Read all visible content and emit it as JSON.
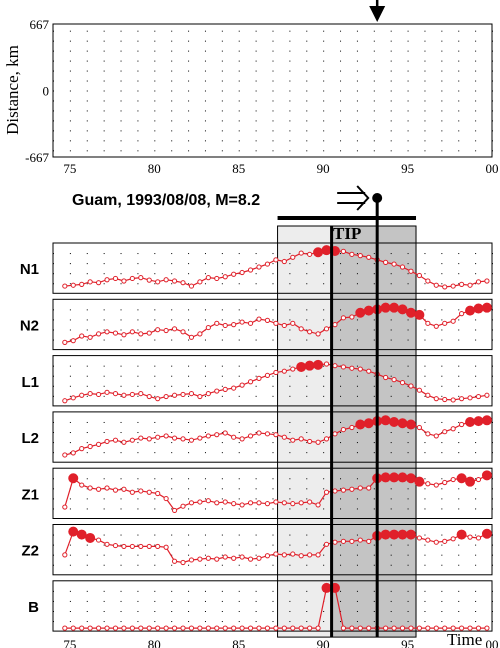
{
  "chart_data": [
    {
      "type": "scatter",
      "ylabel": "Distance, km",
      "xlim": [
        74,
        100
      ],
      "ylim": [
        -667,
        667
      ],
      "x_ticks": [
        "75",
        "80",
        "85",
        "90",
        "95",
        "00"
      ],
      "y_ticks": [
        "667",
        "0",
        "-667"
      ],
      "marker_color": "#e0202a",
      "event_arrow_x": 93.2,
      "note": "dense background seismicity pattern, open circles with occasional filled larger events"
    },
    {
      "type": "line",
      "event_label": "Guam, 1993/08/08, M=8.2",
      "event_time": 93.2,
      "tip_label": "TIP",
      "tip_window": [
        90.5,
        95.5
      ],
      "light_window": [
        87.3,
        95.5
      ],
      "vertical_marks": [
        90.5,
        93.2
      ],
      "xlim": [
        74,
        100
      ],
      "x_ticks": [
        "75",
        "80",
        "85",
        "90",
        "95",
        "00"
      ],
      "xlabel": "Time",
      "line_color": "#e0202a",
      "series": [
        {
          "name": "N1",
          "x": [
            74.7,
            75.2,
            75.7,
            76.2,
            76.7,
            77.2,
            77.7,
            78.2,
            78.7,
            79.2,
            79.7,
            80.2,
            80.7,
            81.2,
            81.7,
            82.2,
            82.7,
            83.2,
            83.7,
            84.2,
            84.7,
            85.2,
            85.7,
            86.2,
            86.7,
            87.2,
            87.7,
            88.2,
            88.7,
            89.2,
            89.7,
            90.2,
            90.7,
            91.2,
            91.7,
            92.2,
            92.7,
            93.2,
            93.7,
            94.2,
            94.7,
            95.2,
            95.7,
            96.2,
            96.7,
            97.2,
            97.7,
            98.2,
            98.7,
            99.2,
            99.7
          ],
          "values": [
            0.1,
            0.12,
            0.14,
            0.2,
            0.18,
            0.25,
            0.28,
            0.22,
            0.28,
            0.3,
            0.24,
            0.2,
            0.25,
            0.22,
            0.18,
            0.1,
            0.2,
            0.3,
            0.28,
            0.32,
            0.38,
            0.42,
            0.48,
            0.55,
            0.62,
            0.72,
            0.68,
            0.78,
            0.88,
            0.85,
            0.9,
            0.95,
            0.93,
            0.92,
            0.85,
            0.82,
            0.78,
            0.72,
            0.66,
            0.62,
            0.55,
            0.45,
            0.35,
            0.22,
            0.12,
            0.08,
            0.1,
            0.14,
            0.12,
            0.2,
            0.22
          ],
          "filled": [
            30,
            31,
            32
          ]
        },
        {
          "name": "N2",
          "x": [
            74.7,
            75.2,
            75.7,
            76.2,
            76.7,
            77.2,
            77.7,
            78.2,
            78.7,
            79.2,
            79.7,
            80.2,
            80.7,
            81.2,
            81.7,
            82.2,
            82.7,
            83.2,
            83.7,
            84.2,
            84.7,
            85.2,
            85.7,
            86.2,
            86.7,
            87.2,
            87.7,
            88.2,
            88.7,
            89.2,
            89.7,
            90.2,
            90.7,
            91.2,
            91.7,
            92.2,
            92.7,
            93.2,
            93.7,
            94.2,
            94.7,
            95.2,
            95.7,
            96.2,
            96.7,
            97.2,
            97.7,
            98.2,
            98.7,
            99.2,
            99.7
          ],
          "values": [
            0.1,
            0.14,
            0.25,
            0.22,
            0.3,
            0.35,
            0.32,
            0.28,
            0.35,
            0.3,
            0.32,
            0.4,
            0.38,
            0.42,
            0.35,
            0.22,
            0.3,
            0.45,
            0.55,
            0.5,
            0.52,
            0.58,
            0.55,
            0.65,
            0.62,
            0.55,
            0.5,
            0.55,
            0.42,
            0.35,
            0.3,
            0.42,
            0.52,
            0.68,
            0.7,
            0.8,
            0.85,
            0.88,
            0.92,
            0.92,
            0.88,
            0.8,
            0.75,
            0.55,
            0.48,
            0.55,
            0.6,
            0.78,
            0.85,
            0.9,
            0.92
          ],
          "filled": [
            35,
            36,
            37,
            38,
            39,
            40,
            41,
            42,
            48,
            49,
            50
          ]
        },
        {
          "name": "L1",
          "x": [
            74.7,
            75.2,
            75.7,
            76.2,
            76.7,
            77.2,
            77.7,
            78.2,
            78.7,
            79.2,
            79.7,
            80.2,
            80.7,
            81.2,
            81.7,
            82.2,
            82.7,
            83.2,
            83.7,
            84.2,
            84.7,
            85.2,
            85.7,
            86.2,
            86.7,
            87.2,
            87.7,
            88.2,
            88.7,
            89.2,
            89.7,
            90.2,
            90.7,
            91.2,
            91.7,
            92.2,
            92.7,
            93.2,
            93.7,
            94.2,
            94.7,
            95.2,
            95.7,
            96.2,
            96.7,
            97.2,
            97.7,
            98.2,
            98.7,
            99.2,
            99.7
          ],
          "values": [
            0.05,
            0.12,
            0.18,
            0.22,
            0.2,
            0.25,
            0.22,
            0.18,
            0.2,
            0.22,
            0.15,
            0.1,
            0.15,
            0.18,
            0.2,
            0.22,
            0.15,
            0.22,
            0.28,
            0.32,
            0.35,
            0.42,
            0.5,
            0.58,
            0.65,
            0.72,
            0.75,
            0.8,
            0.85,
            0.88,
            0.9,
            0.92,
            0.88,
            0.85,
            0.82,
            0.8,
            0.75,
            0.68,
            0.6,
            0.55,
            0.48,
            0.4,
            0.3,
            0.18,
            0.1,
            0.08,
            0.07,
            0.1,
            0.12,
            0.15,
            0.18
          ],
          "filled": [
            28,
            29,
            30
          ]
        },
        {
          "name": "L2",
          "x": [
            74.7,
            75.2,
            75.7,
            76.2,
            76.7,
            77.2,
            77.7,
            78.2,
            78.7,
            79.2,
            79.7,
            80.2,
            80.7,
            81.2,
            81.7,
            82.2,
            82.7,
            83.2,
            83.7,
            84.2,
            84.7,
            85.2,
            85.7,
            86.2,
            86.7,
            87.2,
            87.7,
            88.2,
            88.7,
            89.2,
            89.7,
            90.2,
            90.7,
            91.2,
            91.7,
            92.2,
            92.7,
            93.2,
            93.7,
            94.2,
            94.7,
            95.2,
            95.7,
            96.2,
            96.7,
            97.2,
            97.7,
            98.2,
            98.7,
            99.2,
            99.7
          ],
          "values": [
            0.1,
            0.15,
            0.25,
            0.3,
            0.35,
            0.42,
            0.45,
            0.4,
            0.45,
            0.5,
            0.48,
            0.52,
            0.55,
            0.5,
            0.48,
            0.45,
            0.5,
            0.55,
            0.58,
            0.62,
            0.52,
            0.48,
            0.55,
            0.62,
            0.6,
            0.58,
            0.52,
            0.45,
            0.48,
            0.42,
            0.4,
            0.48,
            0.6,
            0.7,
            0.75,
            0.82,
            0.85,
            0.9,
            0.92,
            0.88,
            0.85,
            0.82,
            0.75,
            0.6,
            0.55,
            0.65,
            0.72,
            0.82,
            0.88,
            0.9,
            0.92
          ],
          "filled": [
            35,
            36,
            37,
            38,
            39,
            40,
            41,
            48,
            49,
            50
          ]
        },
        {
          "name": "Z1",
          "x": [
            74.7,
            75.2,
            75.7,
            76.2,
            76.7,
            77.2,
            77.7,
            78.2,
            78.7,
            79.2,
            79.7,
            80.2,
            80.7,
            81.2,
            81.7,
            82.2,
            82.7,
            83.2,
            83.7,
            84.2,
            84.7,
            85.2,
            85.7,
            86.2,
            86.7,
            87.2,
            87.7,
            88.2,
            88.7,
            89.2,
            89.7,
            90.2,
            90.7,
            91.2,
            91.7,
            92.2,
            92.7,
            93.2,
            93.7,
            94.2,
            94.7,
            95.2,
            95.7,
            96.2,
            96.7,
            97.2,
            97.7,
            98.2,
            98.7,
            99.2,
            99.7
          ],
          "values": [
            0.2,
            0.88,
            0.72,
            0.65,
            0.62,
            0.65,
            0.6,
            0.62,
            0.55,
            0.58,
            0.55,
            0.52,
            0.4,
            0.12,
            0.22,
            0.3,
            0.32,
            0.35,
            0.3,
            0.32,
            0.28,
            0.25,
            0.3,
            0.3,
            0.28,
            0.32,
            0.3,
            0.28,
            0.3,
            0.32,
            0.25,
            0.55,
            0.58,
            0.6,
            0.62,
            0.65,
            0.65,
            0.88,
            0.9,
            0.9,
            0.9,
            0.88,
            0.8,
            0.75,
            0.72,
            0.78,
            0.85,
            0.88,
            0.8,
            0.85,
            0.95
          ],
          "filled": [
            1,
            37,
            38,
            39,
            40,
            41,
            42,
            47,
            48,
            50
          ]
        },
        {
          "name": "Z2",
          "x": [
            74.7,
            75.2,
            75.7,
            76.2,
            76.7,
            77.2,
            77.7,
            78.2,
            78.7,
            79.2,
            79.7,
            80.2,
            80.7,
            81.2,
            81.7,
            82.2,
            82.7,
            83.2,
            83.7,
            84.2,
            84.7,
            85.2,
            85.7,
            86.2,
            86.7,
            87.2,
            87.7,
            88.2,
            88.7,
            89.2,
            89.7,
            90.2,
            90.7,
            91.2,
            91.7,
            92.2,
            92.7,
            93.2,
            93.7,
            94.2,
            94.7,
            95.2,
            95.7,
            96.2,
            96.7,
            97.2,
            97.7,
            98.2,
            98.7,
            99.2,
            99.7
          ],
          "values": [
            0.4,
            0.95,
            0.88,
            0.8,
            0.75,
            0.65,
            0.62,
            0.6,
            0.6,
            0.6,
            0.6,
            0.6,
            0.58,
            0.25,
            0.22,
            0.28,
            0.3,
            0.32,
            0.3,
            0.35,
            0.32,
            0.35,
            0.3,
            0.32,
            0.38,
            0.42,
            0.4,
            0.42,
            0.38,
            0.4,
            0.4,
            0.65,
            0.7,
            0.72,
            0.72,
            0.75,
            0.72,
            0.85,
            0.88,
            0.88,
            0.88,
            0.88,
            0.8,
            0.75,
            0.7,
            0.72,
            0.78,
            0.88,
            0.82,
            0.8,
            0.9
          ],
          "filled": [
            1,
            2,
            3,
            37,
            38,
            39,
            40,
            41,
            47,
            50
          ]
        },
        {
          "name": "B",
          "x": [
            74.7,
            75.2,
            75.7,
            76.2,
            76.7,
            77.2,
            77.7,
            78.2,
            78.7,
            79.2,
            79.7,
            80.2,
            80.7,
            81.2,
            81.7,
            82.2,
            82.7,
            83.2,
            83.7,
            84.2,
            84.7,
            85.2,
            85.7,
            86.2,
            86.7,
            87.2,
            87.7,
            88.2,
            88.7,
            89.2,
            89.7,
            90.2,
            90.7,
            91.2,
            91.7,
            92.2,
            92.7,
            93.2,
            93.7,
            94.2,
            94.7,
            95.2,
            95.7,
            96.2,
            96.7,
            97.2,
            97.7,
            98.2,
            98.7,
            99.2,
            99.7
          ],
          "values": [
            0,
            0,
            0,
            0,
            0,
            0,
            0,
            0,
            0,
            0,
            0,
            0,
            0,
            0,
            0,
            0,
            0,
            0,
            0,
            0,
            0,
            0,
            0,
            0,
            0,
            0,
            0,
            0,
            0,
            0,
            0,
            0.95,
            0.95,
            0,
            0,
            0,
            0,
            0,
            0,
            0,
            0,
            0,
            0,
            0,
            0,
            0,
            0,
            0,
            0,
            0,
            0
          ],
          "filled": [
            31,
            32
          ]
        }
      ]
    }
  ]
}
